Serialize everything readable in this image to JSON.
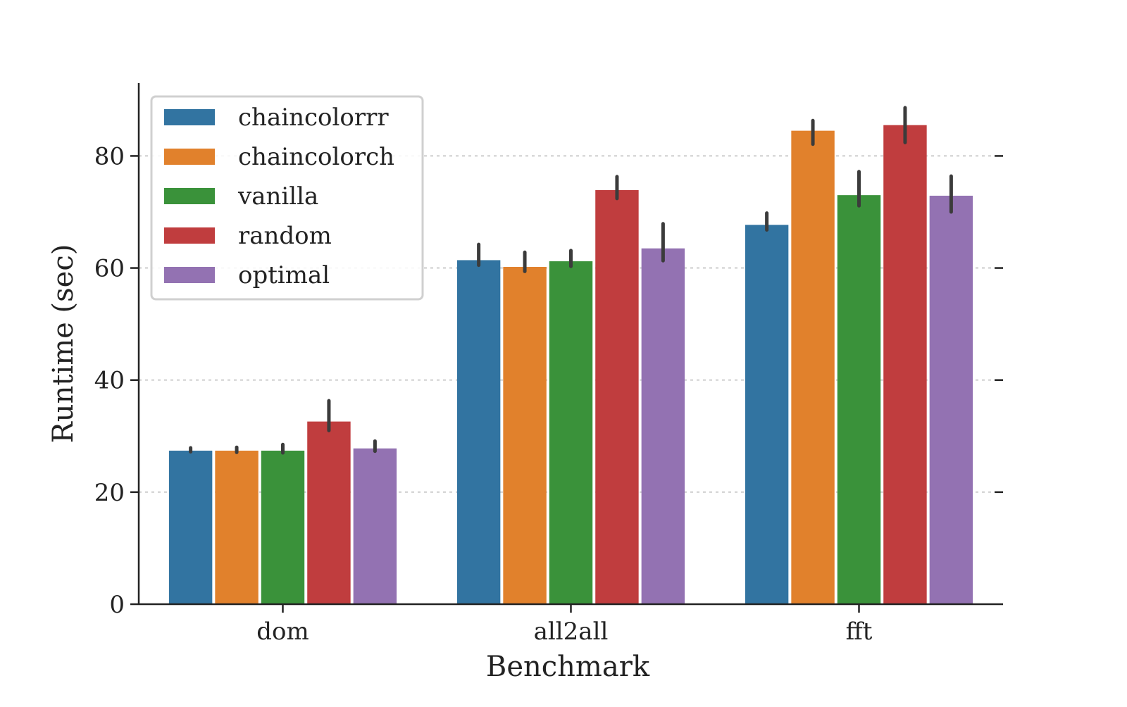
{
  "chart_data": {
    "type": "bar",
    "title": "",
    "xlabel": "Benchmark",
    "ylabel": "Runtime (sec)",
    "ylim": [
      0,
      93
    ],
    "yticks": [
      0,
      20,
      40,
      60,
      80
    ],
    "categories": [
      "dom",
      "all2all",
      "fft"
    ],
    "grid": "y-dashed",
    "legend_position": "upper-left",
    "series": [
      {
        "name": "chaincolorrr",
        "color": "#3274a1",
        "values": [
          27.4,
          61.4,
          67.7
        ],
        "err_low": [
          27.2,
          60.5,
          66.8
        ],
        "err_high": [
          27.9,
          64.2,
          69.8
        ]
      },
      {
        "name": "chaincolorch",
        "color": "#e1812c",
        "values": [
          27.4,
          60.2,
          84.5
        ],
        "err_low": [
          27.1,
          59.4,
          82.1
        ],
        "err_high": [
          28.0,
          62.8,
          86.3
        ]
      },
      {
        "name": "vanilla",
        "color": "#3a923a",
        "values": [
          27.4,
          61.2,
          73.0
        ],
        "err_low": [
          27.0,
          60.3,
          71.1
        ],
        "err_high": [
          28.5,
          63.1,
          77.2
        ]
      },
      {
        "name": "random",
        "color": "#c03d3e",
        "values": [
          32.6,
          73.9,
          85.5
        ],
        "err_low": [
          31.0,
          72.4,
          82.4
        ],
        "err_high": [
          36.3,
          76.3,
          88.6
        ]
      },
      {
        "name": "optimal",
        "color": "#9372b2",
        "values": [
          27.8,
          63.5,
          72.9
        ],
        "err_low": [
          27.3,
          61.3,
          70.0
        ],
        "err_high": [
          29.1,
          67.9,
          76.4
        ]
      }
    ]
  }
}
